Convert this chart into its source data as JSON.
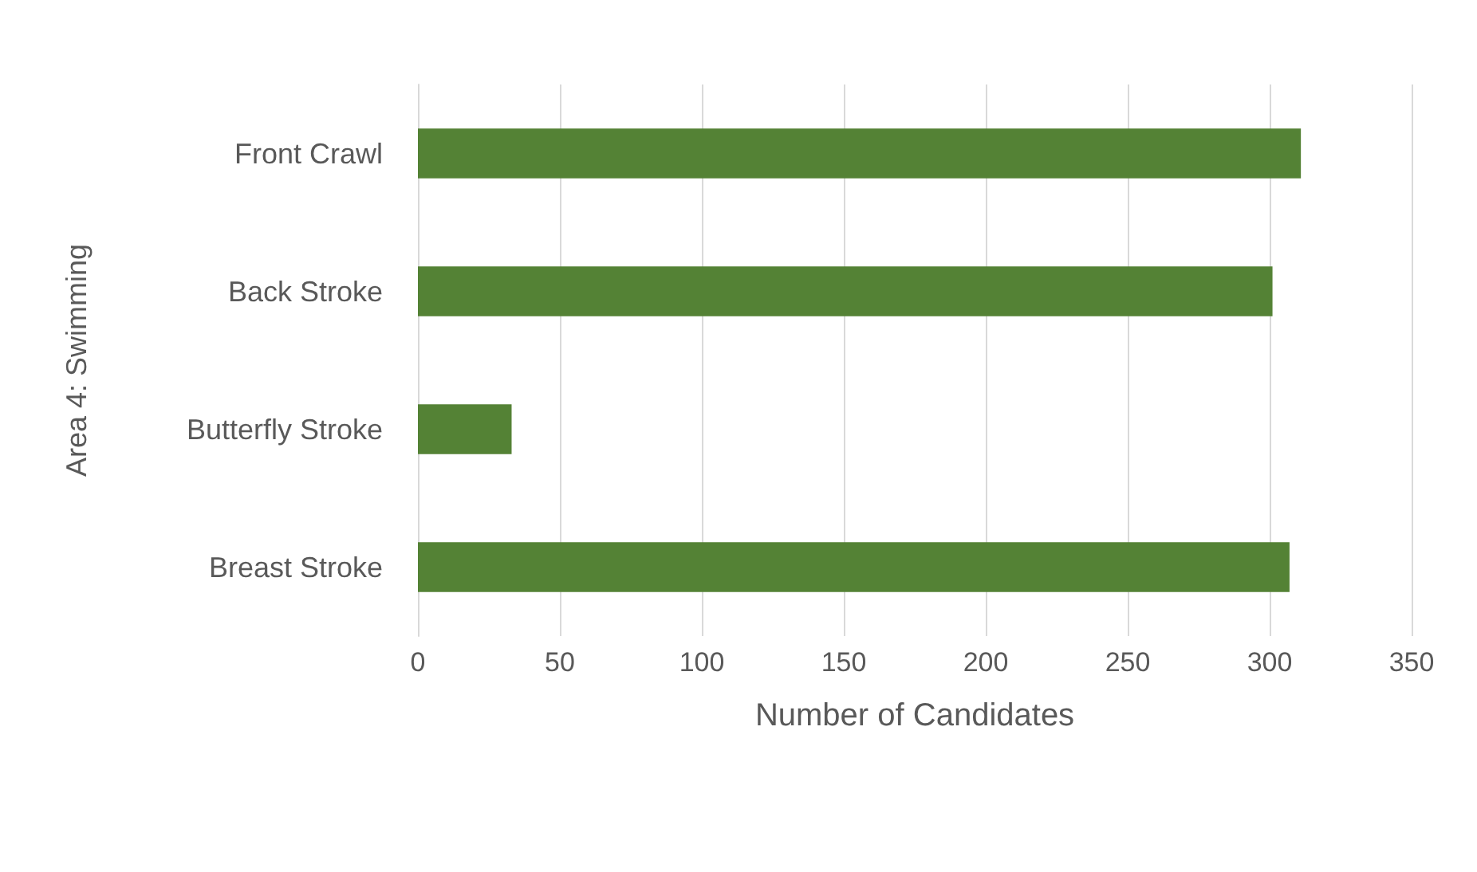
{
  "chart_data": {
    "type": "bar",
    "orientation": "horizontal",
    "xlabel": "Number of Candidates",
    "ylabel": "Area 4: Swimming",
    "categories": [
      "Front Crawl",
      "Back Stroke",
      "Butterfly Stroke",
      "Breast Stroke"
    ],
    "values": [
      311,
      301,
      33,
      307
    ],
    "color": "#548235",
    "xlim": [
      0,
      350
    ],
    "xticks": [
      0,
      50,
      100,
      150,
      200,
      250,
      300,
      350
    ],
    "grid": "x"
  }
}
